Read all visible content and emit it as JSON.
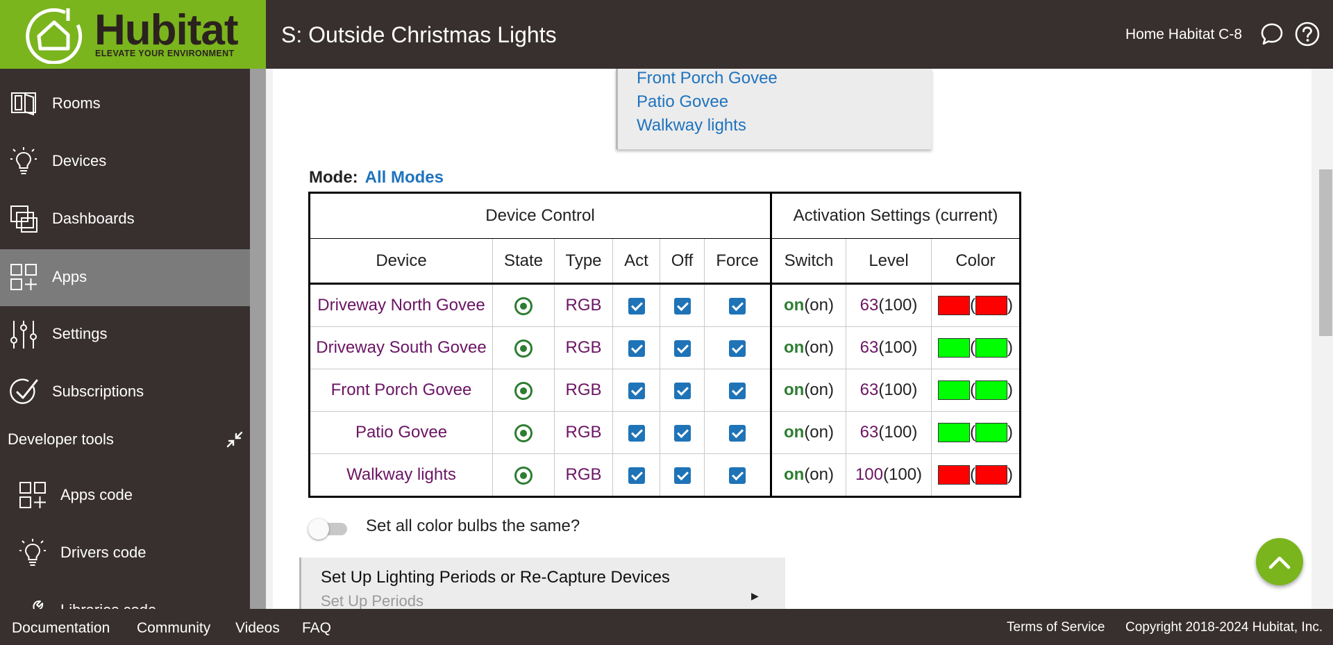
{
  "brand": {
    "name": "Hubitat",
    "tagline": "ELEVATE YOUR ENVIRONMENT",
    "color": "#7ab51d"
  },
  "header": {
    "title": "S: Outside Christmas Lights",
    "hub_name": "Home Habitat C-8"
  },
  "sidebar": {
    "items": [
      {
        "label": "Rooms",
        "icon": "rooms-icon"
      },
      {
        "label": "Devices",
        "icon": "bulb-icon"
      },
      {
        "label": "Dashboards",
        "icon": "dashboards-icon"
      },
      {
        "label": "Apps",
        "icon": "apps-icon",
        "active": true
      },
      {
        "label": "Settings",
        "icon": "sliders-icon"
      },
      {
        "label": "Subscriptions",
        "icon": "check-circle-icon"
      }
    ],
    "developer_tools": {
      "label": "Developer tools",
      "items": [
        {
          "label": "Apps code",
          "icon": "apps-icon"
        },
        {
          "label": "Drivers code",
          "icon": "bulb-icon"
        },
        {
          "label": "Libraries code",
          "icon": "wrench-icon"
        }
      ]
    }
  },
  "device_list": [
    "Front Porch Govee",
    "Patio Govee",
    "Walkway lights"
  ],
  "mode": {
    "label": "Mode:",
    "value": "All Modes"
  },
  "table": {
    "group_headers": {
      "control": "Device Control",
      "activation": "Activation Settings (current)"
    },
    "columns": [
      "Device",
      "State",
      "Type",
      "Act",
      "Off",
      "Force",
      "Switch",
      "Level",
      "Color"
    ],
    "rows": [
      {
        "device": "Driveway North Govee",
        "type": "RGB",
        "switch": "on",
        "switch_current": "(on)",
        "level": "63",
        "level_current": "(100)",
        "color": "#ff0000",
        "color_current": "#ff0000"
      },
      {
        "device": "Driveway South Govee",
        "type": "RGB",
        "switch": "on",
        "switch_current": "(on)",
        "level": "63",
        "level_current": "(100)",
        "color": "#00ff00",
        "color_current": "#00ff00"
      },
      {
        "device": "Front Porch Govee",
        "type": "RGB",
        "switch": "on",
        "switch_current": "(on)",
        "level": "63",
        "level_current": "(100)",
        "color": "#00ff00",
        "color_current": "#00ff00"
      },
      {
        "device": "Patio Govee",
        "type": "RGB",
        "switch": "on",
        "switch_current": "(on)",
        "level": "63",
        "level_current": "(100)",
        "color": "#00ff00",
        "color_current": "#00ff00"
      },
      {
        "device": "Walkway lights",
        "type": "RGB",
        "switch": "on",
        "switch_current": "(on)",
        "level": "100",
        "level_current": "(100)",
        "color": "#ff0000",
        "color_current": "#ff0000"
      }
    ]
  },
  "toggle": {
    "label": "Set all color bulbs the same?",
    "on": false
  },
  "periods": {
    "title": "Set Up Lighting Periods or Re-Capture Devices",
    "subtitle": "Set Up Periods"
  },
  "footer": {
    "links": [
      "Documentation",
      "Community",
      "Videos",
      "FAQ"
    ],
    "terms": "Terms of Service",
    "copyright": "Copyright 2018-2024 Hubitat, Inc."
  }
}
